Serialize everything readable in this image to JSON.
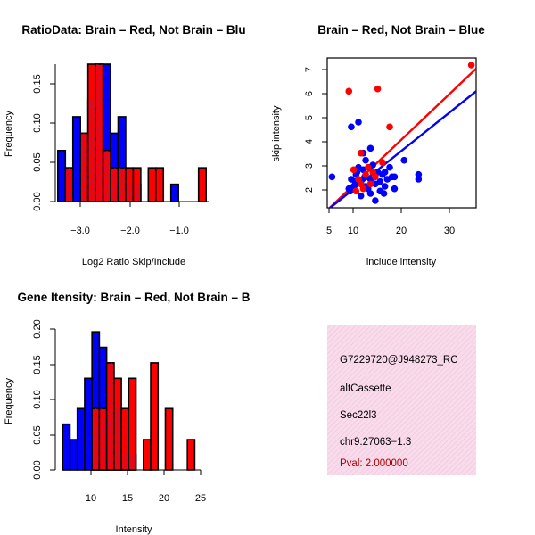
{
  "chart_data": [
    {
      "type": "bar",
      "subtype": "overlaid-histogram",
      "title": "RatioData: Brain – Red, Not Brain – Blu",
      "xlabel": "Log2 Ratio Skip/Include",
      "ylabel": "Frequency",
      "xlim": [
        -3.4,
        -0.35
      ],
      "ylim": [
        0,
        0.175
      ],
      "xticks": [
        -3.0,
        -2.0,
        -1.0
      ],
      "xtick_labels": [
        "−3.0",
        "−2.0",
        "−1.0"
      ],
      "yticks": [
        0.0,
        0.05,
        0.1,
        0.15
      ],
      "ytick_labels": [
        "0.00",
        "0.05",
        "0.10",
        "0.15"
      ],
      "series": [
        {
          "name": "Not Brain",
          "color": "#0000ff",
          "bins": [
            [
              -3.35,
              -3.2,
              0.065
            ],
            [
              -3.2,
              -3.05,
              0.043
            ],
            [
              -3.05,
              -2.9,
              0.108
            ],
            [
              -2.9,
              -2.75,
              0.087
            ],
            [
              -2.75,
              -2.6,
              0.13
            ],
            [
              -2.6,
              -2.45,
              0.175
            ],
            [
              -2.45,
              -2.3,
              0.175
            ],
            [
              -2.3,
              -2.15,
              0.087
            ],
            [
              -2.15,
              -2.0,
              0.108
            ],
            [
              -2.0,
              -1.85,
              0.022
            ],
            [
              -1.85,
              -1.7,
              0.022
            ],
            [
              -1.1,
              -0.95,
              0.022
            ]
          ]
        },
        {
          "name": "Brain",
          "color": "#ff0000",
          "bins": [
            [
              -3.2,
              -3.05,
              0.043
            ],
            [
              -2.9,
              -2.75,
              0.087
            ],
            [
              -2.75,
              -2.6,
              0.175
            ],
            [
              -2.6,
              -2.45,
              0.175
            ],
            [
              -2.45,
              -2.3,
              0.065
            ],
            [
              -2.3,
              -2.15,
              0.043
            ],
            [
              -2.15,
              -2.0,
              0.043
            ],
            [
              -2.0,
              -1.85,
              0.043
            ],
            [
              -1.85,
              -1.7,
              0.043
            ],
            [
              -1.55,
              -1.4,
              0.043
            ],
            [
              -1.4,
              -1.25,
              0.043
            ],
            [
              -0.55,
              -0.4,
              0.043
            ]
          ]
        }
      ]
    },
    {
      "type": "scatter",
      "title": "Brain – Red, Not Brain – Blue",
      "xlabel": "include intensity",
      "ylabel": "skip intensity",
      "xlim": [
        5,
        36
      ],
      "ylim": [
        1.2,
        7.5
      ],
      "xticks": [
        5,
        10,
        20,
        30
      ],
      "xtick_labels": [
        "5",
        "10",
        "20",
        "30"
      ],
      "yticks": [
        2,
        3,
        4,
        5,
        6,
        7
      ],
      "ytick_labels": [
        "2",
        "3",
        "4",
        "5",
        "6",
        "7"
      ],
      "series": [
        {
          "name": "Brain",
          "color": "#ff0000",
          "points": [
            [
              9.5,
              6.1
            ],
            [
              12,
              3.5
            ],
            [
              15.5,
              6.2
            ],
            [
              18,
              4.6
            ],
            [
              35,
              7.2
            ],
            [
              10.5,
              2.8
            ],
            [
              11.5,
              2.4
            ],
            [
              12.5,
              2.0
            ],
            [
              13,
              2.6
            ],
            [
              14,
              2.2
            ],
            [
              11,
              1.9
            ],
            [
              13.5,
              2.9
            ],
            [
              15,
              2.5
            ],
            [
              16.5,
              3.1
            ],
            [
              12,
              2.2
            ],
            [
              14.5,
              2.7
            ]
          ]
        },
        {
          "name": "Not Brain",
          "color": "#0000ff",
          "points": [
            [
              6,
              2.5
            ],
            [
              9.5,
              2.0
            ],
            [
              10,
              2.4
            ],
            [
              10.5,
              2.1
            ],
            [
              11,
              2.6
            ],
            [
              11,
              2.2
            ],
            [
              11.5,
              2.9
            ],
            [
              12,
              2.3
            ],
            [
              12,
              1.7
            ],
            [
              12.5,
              2.8
            ],
            [
              13,
              2.5
            ],
            [
              13,
              3.2
            ],
            [
              13.5,
              2.0
            ],
            [
              14,
              2.4
            ],
            [
              14,
              1.8
            ],
            [
              14.5,
              3.0
            ],
            [
              15,
              2.2
            ],
            [
              15,
              1.5
            ],
            [
              15.5,
              2.7
            ],
            [
              16,
              2.3
            ],
            [
              16,
              1.9
            ],
            [
              16.5,
              2.6
            ],
            [
              17,
              2.1
            ],
            [
              17.5,
              2.4
            ],
            [
              18,
              2.9
            ],
            [
              18.5,
              2.5
            ],
            [
              19,
              2.0
            ],
            [
              10,
              4.6
            ],
            [
              11.5,
              4.8
            ],
            [
              12.5,
              3.5
            ],
            [
              14,
              3.7
            ],
            [
              9.8,
              1.9
            ],
            [
              10.8,
              2.3
            ],
            [
              12.8,
              2.5
            ],
            [
              13.8,
              2.9
            ],
            [
              16.8,
              1.8
            ],
            [
              21,
              3.2
            ],
            [
              24,
              2.6
            ],
            [
              24,
              2.4
            ],
            [
              19,
              2.5
            ],
            [
              13,
              2.1
            ],
            [
              15,
              2.6
            ],
            [
              11.2,
              2.7
            ],
            [
              17,
              2.7
            ]
          ]
        }
      ],
      "lines": [
        {
          "name": "Brain fit",
          "color": "#ff0000",
          "from": [
            5,
            1.1
          ],
          "to": [
            36,
            7.05
          ]
        },
        {
          "name": "Not Brain fit",
          "color": "#0000ff",
          "from": [
            5,
            1.1
          ],
          "to": [
            36,
            6.1
          ]
        }
      ]
    },
    {
      "type": "bar",
      "subtype": "overlaid-histogram",
      "title": "Gene Itensity: Brain – Red, Not Brain – B",
      "xlabel": "Intensity",
      "ylabel": "Frequency",
      "xlim": [
        6,
        25.8
      ],
      "ylim": [
        0,
        0.2
      ],
      "xticks": [
        10,
        15,
        20,
        25
      ],
      "xtick_labels": [
        "10",
        "15",
        "20",
        "25"
      ],
      "yticks": [
        0.0,
        0.05,
        0.1,
        0.15,
        0.2
      ],
      "ytick_labels": [
        "0.00",
        "0.05",
        "0.10",
        "0.15",
        "0.20"
      ],
      "series": [
        {
          "name": "Not Brain",
          "color": "#0000ff",
          "bins": [
            [
              7,
              8,
              0.065
            ],
            [
              8,
              9,
              0.043
            ],
            [
              9,
              10,
              0.087
            ],
            [
              10,
              11,
              0.13
            ],
            [
              11,
              12,
              0.196
            ],
            [
              12,
              13,
              0.174
            ],
            [
              13,
              14,
              0.152
            ],
            [
              14,
              15,
              0.087
            ],
            [
              15,
              16,
              0.022
            ],
            [
              16,
              17,
              0.022
            ]
          ]
        },
        {
          "name": "Brain",
          "color": "#ff0000",
          "bins": [
            [
              11,
              12,
              0.087
            ],
            [
              12,
              13,
              0.087
            ],
            [
              13,
              14,
              0.152
            ],
            [
              14,
              15,
              0.13
            ],
            [
              15,
              16,
              0.087
            ],
            [
              16,
              17,
              0.13
            ],
            [
              18,
              19,
              0.043
            ],
            [
              19,
              20,
              0.152
            ],
            [
              21,
              22,
              0.087
            ],
            [
              24,
              25,
              0.043
            ]
          ]
        }
      ]
    }
  ],
  "info_box": {
    "background": "#f8d8ec",
    "lines": [
      "G7229720@J948273_RC",
      "altCassette",
      "Sec22l3",
      "chr9.27063−1.3"
    ],
    "pval": "Pval: 2.000000",
    "pval_color": "#b00000"
  }
}
